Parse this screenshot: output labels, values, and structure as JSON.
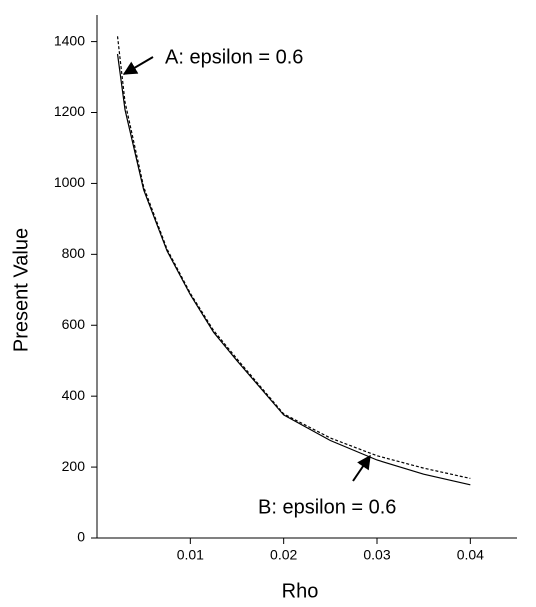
{
  "chart_data": {
    "type": "line",
    "x_label": "Rho",
    "y_label": "Present Value",
    "x": [
      0.0022,
      0.003,
      0.005,
      0.0075,
      0.01,
      0.0125,
      0.015,
      0.02,
      0.025,
      0.03,
      0.035,
      0.04
    ],
    "series": [
      {
        "color": "#000000",
        "dashed": false,
        "values": [
          1365,
          1208,
          982,
          810,
          686,
          580,
          500,
          347,
          275,
          220,
          180,
          150
        ]
      },
      {
        "color": "#000000",
        "dashed": true,
        "values": [
          1415,
          1230,
          990,
          815,
          690,
          585,
          505,
          350,
          282,
          232,
          197,
          168
        ]
      }
    ],
    "xlim": [
      0,
      0.045
    ],
    "xticks": [
      0.01,
      0.02,
      0.03,
      0.04
    ],
    "ylim": [
      0,
      1475
    ],
    "yticks": [
      0,
      200,
      400,
      600,
      800,
      1000,
      1200,
      1400
    ],
    "grid": false,
    "annotations": [
      "A: epsilon = 0.6",
      "B: epsilon = 0.6"
    ]
  }
}
